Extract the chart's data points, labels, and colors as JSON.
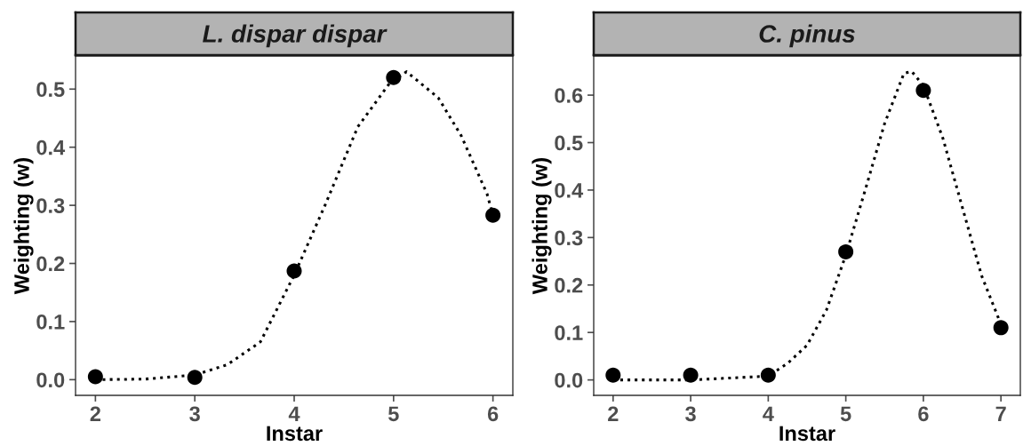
{
  "chart_data": [
    {
      "type": "scatter",
      "title": "L. dispar dispar",
      "xlabel": "Instar",
      "ylabel": "Weighting (w)",
      "xlim": [
        1.8,
        6.2
      ],
      "ylim": [
        -0.027,
        0.557
      ],
      "xticks": [
        2,
        3,
        4,
        5,
        6
      ],
      "yticks": [
        {
          "value": 0,
          "label": "0.0"
        },
        0.1,
        0.2,
        0.3,
        0.4,
        0.5
      ],
      "grid": false,
      "legend": false,
      "marker": "circle",
      "series": [
        {
          "color": "#000000",
          "x": [
            2,
            3,
            4,
            5,
            6
          ],
          "values": [
            0.005,
            0.004,
            0.187,
            0.52,
            0.283
          ]
        },
        {
          "type": "line",
          "color": "#000000",
          "line_style": "dotted",
          "marker": "none",
          "x": [
            2,
            2.5,
            3,
            3.33,
            3.66,
            4,
            4.31,
            4.64,
            4.96,
            5.13,
            5.45,
            5.68,
            5.94,
            6
          ],
          "values": [
            0.0,
            0.001,
            0.008,
            0.026,
            0.065,
            0.18,
            0.3,
            0.435,
            0.51,
            0.53,
            0.485,
            0.42,
            0.32,
            0.283
          ]
        }
      ]
    },
    {
      "type": "scatter",
      "title": "C. pinus",
      "xlabel": "Instar",
      "ylabel": "Weighting (w)",
      "xlim": [
        1.75,
        7.25
      ],
      "ylim": [
        -0.0325,
        0.6825
      ],
      "xticks": [
        2,
        3,
        4,
        5,
        6,
        7
      ],
      "yticks": [
        {
          "value": 0,
          "label": "0.0"
        },
        0.1,
        0.2,
        0.3,
        0.4,
        0.5,
        0.6
      ],
      "grid": false,
      "legend": false,
      "marker": "circle",
      "series": [
        {
          "color": "#000000",
          "x": [
            2,
            3,
            4,
            5,
            6,
            7
          ],
          "values": [
            0.01,
            0.01,
            0.01,
            0.27,
            0.61,
            0.11
          ]
        },
        {
          "type": "line",
          "color": "#000000",
          "line_style": "dotted",
          "marker": "none",
          "x": [
            2,
            3,
            4,
            4.25,
            4.5,
            4.75,
            5,
            5.25,
            5.5,
            5.75,
            5.85,
            6,
            6.25,
            6.5,
            6.75,
            7
          ],
          "values": [
            0.0,
            0.0,
            0.008,
            0.035,
            0.073,
            0.147,
            0.263,
            0.4,
            0.54,
            0.646,
            0.65,
            0.62,
            0.51,
            0.365,
            0.22,
            0.117
          ]
        }
      ]
    }
  ]
}
